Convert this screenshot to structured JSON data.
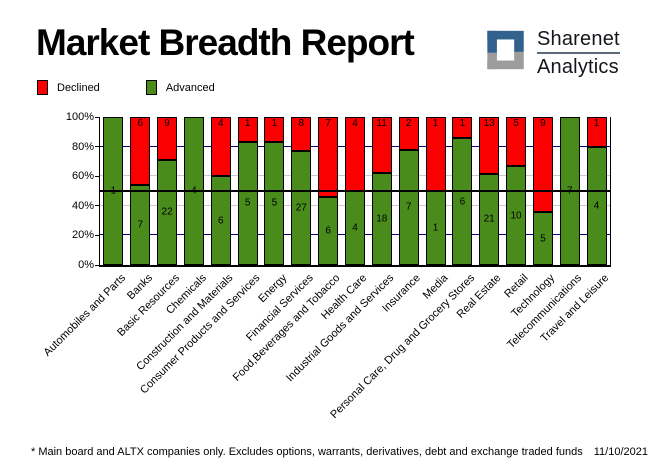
{
  "header": {
    "title": "Market Breadth Report",
    "logo": {
      "line1": "Sharenet",
      "line2": "Analytics"
    }
  },
  "legend": {
    "declined": "Declined",
    "advanced": "Advanced"
  },
  "chart_data": {
    "type": "bar",
    "stacked": true,
    "stack_mode": "percent",
    "title": "Market Breadth Report",
    "legend_position": "top-left",
    "categories": [
      "Automobiles and Parts",
      "Banks",
      "Basic Resources",
      "Chemicals",
      "Construction and Materials",
      "Consumer Products and Services",
      "Energy",
      "Financial Services",
      "Food,Beverages and Tobacco",
      "Health Care",
      "Industrial Goods and Services",
      "Insurance",
      "Media",
      "Personal Care, Drug and Grocery Stores",
      "Real Estate",
      "Retail",
      "Technology",
      "Telecommunications",
      "Travel and Leisure"
    ],
    "series": [
      {
        "name": "Declined",
        "color": "#fb0000",
        "values": [
          0,
          6,
          9,
          0,
          4,
          1,
          1,
          8,
          7,
          4,
          11,
          2,
          1,
          1,
          13,
          5,
          9,
          0,
          1
        ]
      },
      {
        "name": "Advanced",
        "color": "#4a8c1c",
        "values": [
          1,
          7,
          22,
          4,
          6,
          5,
          5,
          27,
          6,
          4,
          18,
          7,
          1,
          6,
          21,
          10,
          5,
          7,
          4
        ]
      }
    ],
    "ylim": [
      0,
      100
    ],
    "y_tick_labels": [
      "0%",
      "20%",
      "40%",
      "60%",
      "80%",
      "100%"
    ],
    "gridlines": [
      {
        "pct": 20,
        "color": "#000080"
      },
      {
        "pct": 40,
        "color": "#c9c9c9"
      },
      {
        "pct": 60,
        "color": "#c9c9c9"
      },
      {
        "pct": 80,
        "color": "#000080"
      }
    ],
    "reference_line": {
      "value": 50,
      "color": "#000000"
    }
  },
  "colors": {
    "declined": "#fb0000",
    "advanced": "#4a8c1c",
    "logo_blue": "#31618c",
    "logo_gray": "#9c9c9c"
  },
  "footer": {
    "note": "* Main board and ALTX companies only. Excludes options, warrants, derivatives, debt and exchange traded funds",
    "date": "11/10/2021"
  }
}
